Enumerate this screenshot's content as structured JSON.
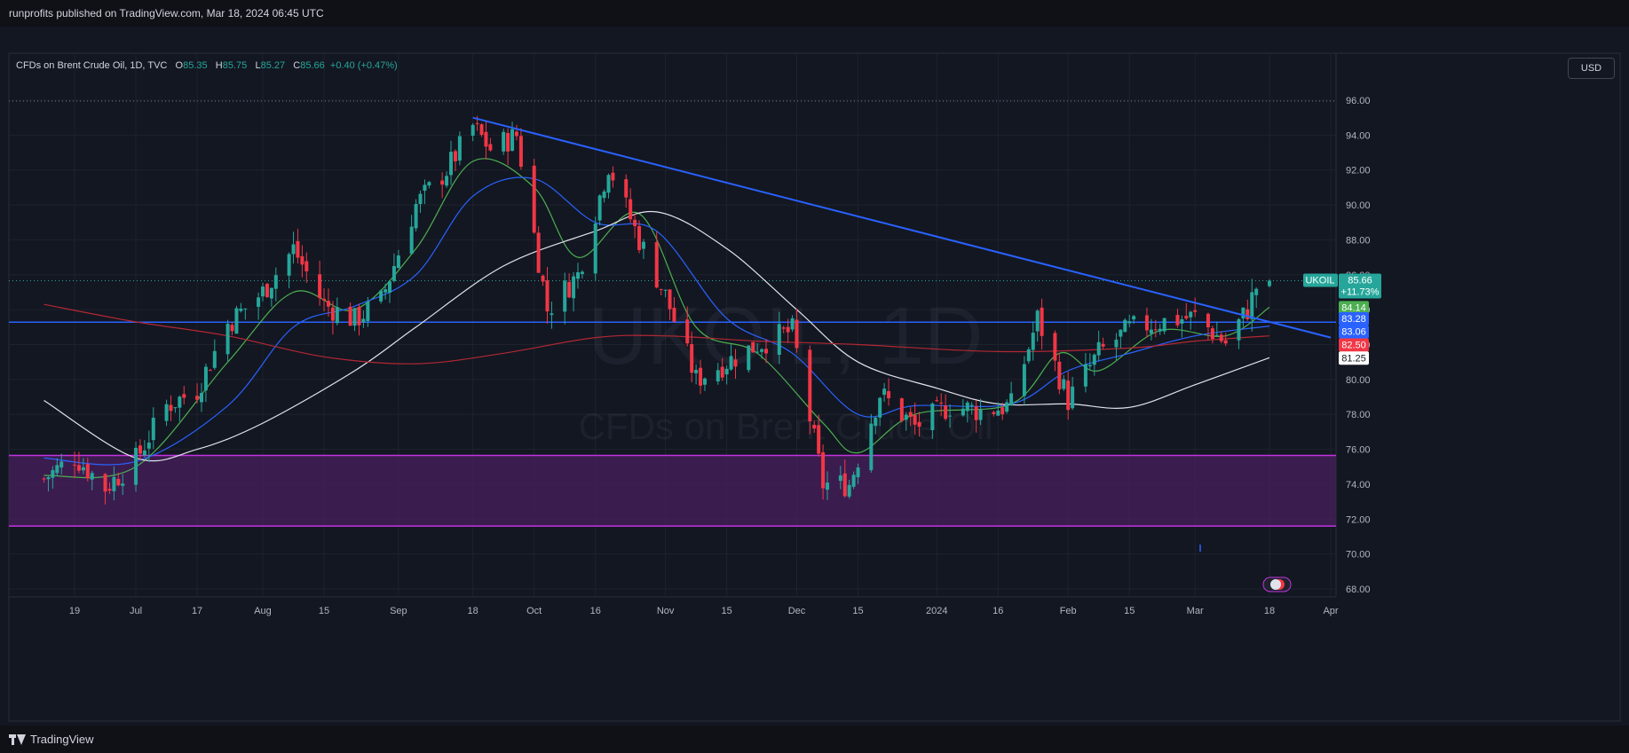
{
  "header": {
    "publisher_line": "runprofits published on TradingView.com, Mar 18, 2024 06:45 UTC"
  },
  "footer": {
    "brand": "TradingView"
  },
  "toolbar": {
    "currency_button": "USD"
  },
  "legend": {
    "instrument": "CFDs on Brent Crude Oil, 1D, TVC",
    "o_key": "O",
    "o_val": "85.35",
    "h_key": "H",
    "h_val": "85.75",
    "l_key": "L",
    "l_val": "85.27",
    "c_key": "C",
    "c_val": "85.66",
    "change": "+0.40 (+0.47%)"
  },
  "watermark": {
    "symbol": "UKOIL, 1D",
    "description": "CFDs on Brent Crude Oil"
  },
  "colors": {
    "background": "#131722",
    "up": "#26a69a",
    "down": "#f23645",
    "trendline": "#2962ff",
    "support_line": "#2962ff",
    "zone_fill": "#4a1f5e",
    "zone_border": "#c433e0",
    "ma_green": "#4caf50",
    "ma_blue": "#2962ff",
    "ma_white": "#e0e3eb",
    "ma_red": "#b22833"
  },
  "chart_data": {
    "type": "candlestick",
    "symbol": "UKOIL",
    "timeframe": "1D",
    "currency": "USD",
    "ylim": [
      67.5,
      97.2
    ],
    "y_ticks": [
      "96.00",
      "94.00",
      "92.00",
      "90.00",
      "88.00",
      "86.00",
      "84.00",
      "82.00",
      "80.00",
      "78.00",
      "76.00",
      "74.00",
      "72.00",
      "70.00",
      "68.00"
    ],
    "x_ticks": [
      {
        "label": "19",
        "date": "2023-06-19"
      },
      {
        "label": "Jul",
        "date": "2023-07-03"
      },
      {
        "label": "17",
        "date": "2023-07-17"
      },
      {
        "label": "Aug",
        "date": "2023-08-01"
      },
      {
        "label": "15",
        "date": "2023-08-15"
      },
      {
        "label": "Sep",
        "date": "2023-09-01"
      },
      {
        "label": "18",
        "date": "2023-09-18"
      },
      {
        "label": "Oct",
        "date": "2023-10-02"
      },
      {
        "label": "16",
        "date": "2023-10-16"
      },
      {
        "label": "Nov",
        "date": "2023-11-01"
      },
      {
        "label": "15",
        "date": "2023-11-15"
      },
      {
        "label": "Dec",
        "date": "2023-12-01"
      },
      {
        "label": "15",
        "date": "2023-12-15"
      },
      {
        "label": "2024",
        "date": "2024-01-02"
      },
      {
        "label": "16",
        "date": "2024-01-16"
      },
      {
        "label": "Feb",
        "date": "2024-02-01"
      },
      {
        "label": "15",
        "date": "2024-02-15"
      },
      {
        "label": "Mar",
        "date": "2024-03-01"
      },
      {
        "label": "18",
        "date": "2024-03-18"
      },
      {
        "label": "Apr",
        "date": "2024-04-01"
      }
    ],
    "close_anchors": [
      {
        "date": "2023-06-12",
        "close": 74.3
      },
      {
        "date": "2023-06-19",
        "close": 75.6
      },
      {
        "date": "2023-06-26",
        "close": 73.8
      },
      {
        "date": "2023-07-03",
        "close": 75.4
      },
      {
        "date": "2023-07-10",
        "close": 78.5
      },
      {
        "date": "2023-07-17",
        "close": 79.4
      },
      {
        "date": "2023-07-24",
        "close": 83.2
      },
      {
        "date": "2023-08-01",
        "close": 85.0
      },
      {
        "date": "2023-08-08",
        "close": 87.5
      },
      {
        "date": "2023-08-15",
        "close": 84.3
      },
      {
        "date": "2023-08-22",
        "close": 83.4
      },
      {
        "date": "2023-08-28",
        "close": 84.5
      },
      {
        "date": "2023-09-05",
        "close": 90.0
      },
      {
        "date": "2023-09-12",
        "close": 92.0
      },
      {
        "date": "2023-09-18",
        "close": 94.5
      },
      {
        "date": "2023-09-22",
        "close": 93.2
      },
      {
        "date": "2023-09-28",
        "close": 94.0
      },
      {
        "date": "2023-10-05",
        "close": 84.0
      },
      {
        "date": "2023-10-12",
        "close": 86.0
      },
      {
        "date": "2023-10-19",
        "close": 92.3
      },
      {
        "date": "2023-10-26",
        "close": 88.0
      },
      {
        "date": "2023-11-01",
        "close": 84.8
      },
      {
        "date": "2023-11-08",
        "close": 80.0
      },
      {
        "date": "2023-11-15",
        "close": 81.0
      },
      {
        "date": "2023-11-22",
        "close": 82.0
      },
      {
        "date": "2023-11-30",
        "close": 82.8
      },
      {
        "date": "2023-12-07",
        "close": 74.0
      },
      {
        "date": "2023-12-13",
        "close": 74.0
      },
      {
        "date": "2023-12-20",
        "close": 79.2
      },
      {
        "date": "2023-12-28",
        "close": 77.3
      },
      {
        "date": "2024-01-05",
        "close": 78.5
      },
      {
        "date": "2024-01-12",
        "close": 78.2
      },
      {
        "date": "2024-01-19",
        "close": 78.5
      },
      {
        "date": "2024-01-25",
        "close": 83.5
      },
      {
        "date": "2024-02-01",
        "close": 78.8
      },
      {
        "date": "2024-02-08",
        "close": 81.5
      },
      {
        "date": "2024-02-15",
        "close": 82.9
      },
      {
        "date": "2024-02-22",
        "close": 83.3
      },
      {
        "date": "2024-03-01",
        "close": 83.6
      },
      {
        "date": "2024-03-08",
        "close": 82.1
      },
      {
        "date": "2024-03-13",
        "close": 84.0
      },
      {
        "date": "2024-03-15",
        "close": 85.3
      },
      {
        "date": "2024-03-18",
        "close": 85.66
      }
    ],
    "last_candle": {
      "date": "2024-03-18",
      "open": 85.35,
      "high": 85.75,
      "low": 85.27,
      "close": 85.66
    },
    "moving_averages": [
      {
        "color": "green",
        "points": [
          [
            "2023-06-12",
            74.5
          ],
          [
            "2023-07-03",
            75.0
          ],
          [
            "2023-07-24",
            81.0
          ],
          [
            "2023-08-08",
            85.0
          ],
          [
            "2023-08-22",
            84.0
          ],
          [
            "2023-09-05",
            87.5
          ],
          [
            "2023-09-18",
            92.5
          ],
          [
            "2023-10-02",
            91.0
          ],
          [
            "2023-10-12",
            87.0
          ],
          [
            "2023-10-26",
            89.5
          ],
          [
            "2023-11-08",
            83.0
          ],
          [
            "2023-11-22",
            81.5
          ],
          [
            "2023-12-07",
            77.5
          ],
          [
            "2023-12-15",
            75.8
          ],
          [
            "2023-12-28",
            78.0
          ],
          [
            "2024-01-19",
            78.6
          ],
          [
            "2024-01-30",
            81.5
          ],
          [
            "2024-02-08",
            80.5
          ],
          [
            "2024-02-22",
            82.8
          ],
          [
            "2024-03-08",
            82.5
          ],
          [
            "2024-03-18",
            84.14
          ]
        ],
        "last_value": 84.14
      },
      {
        "color": "blue",
        "points": [
          [
            "2023-06-12",
            75.5
          ],
          [
            "2023-07-03",
            75.3
          ],
          [
            "2023-07-24",
            78.5
          ],
          [
            "2023-08-08",
            83.0
          ],
          [
            "2023-08-22",
            84.2
          ],
          [
            "2023-09-05",
            86.0
          ],
          [
            "2023-09-18",
            90.5
          ],
          [
            "2023-10-02",
            91.5
          ],
          [
            "2023-10-16",
            89.0
          ],
          [
            "2023-10-30",
            88.5
          ],
          [
            "2023-11-15",
            83.5
          ],
          [
            "2023-11-30",
            81.5
          ],
          [
            "2023-12-15",
            78.0
          ],
          [
            "2023-12-28",
            78.5
          ],
          [
            "2024-01-19",
            78.6
          ],
          [
            "2024-02-01",
            80.5
          ],
          [
            "2024-02-15",
            81.5
          ],
          [
            "2024-03-01",
            82.5
          ],
          [
            "2024-03-18",
            83.06
          ]
        ],
        "last_value": 83.06
      },
      {
        "color": "white",
        "points": [
          [
            "2023-06-12",
            78.8
          ],
          [
            "2023-07-03",
            75.5
          ],
          [
            "2023-07-17",
            76.0
          ],
          [
            "2023-08-01",
            77.5
          ],
          [
            "2023-08-22",
            80.5
          ],
          [
            "2023-09-05",
            83.0
          ],
          [
            "2023-09-25",
            86.5
          ],
          [
            "2023-10-16",
            88.5
          ],
          [
            "2023-10-30",
            89.6
          ],
          [
            "2023-11-15",
            87.5
          ],
          [
            "2023-12-01",
            84.0
          ],
          [
            "2023-12-15",
            81.0
          ],
          [
            "2024-01-02",
            79.5
          ],
          [
            "2024-01-16",
            78.6
          ],
          [
            "2024-02-01",
            78.6
          ],
          [
            "2024-02-15",
            78.4
          ],
          [
            "2024-03-01",
            79.7
          ],
          [
            "2024-03-18",
            81.25
          ]
        ],
        "last_value": 81.25
      },
      {
        "color": "red",
        "points": [
          [
            "2023-06-12",
            84.3
          ],
          [
            "2023-07-03",
            83.3
          ],
          [
            "2023-07-24",
            82.5
          ],
          [
            "2023-08-15",
            81.3
          ],
          [
            "2023-09-05",
            80.9
          ],
          [
            "2023-09-25",
            81.5
          ],
          [
            "2023-10-16",
            82.4
          ],
          [
            "2023-11-01",
            82.5
          ],
          [
            "2023-11-22",
            82.2
          ],
          [
            "2023-12-15",
            82.0
          ],
          [
            "2024-01-16",
            81.6
          ],
          [
            "2024-02-15",
            81.8
          ],
          [
            "2024-03-01",
            82.2
          ],
          [
            "2024-03-18",
            82.5
          ]
        ],
        "last_value": 82.5
      }
    ],
    "trendline": {
      "start": [
        "2023-09-18",
        95.0
      ],
      "end": [
        "2024-04-01",
        82.4
      ]
    },
    "support_line": {
      "value": 83.28
    },
    "demand_zone": {
      "top": 75.65,
      "bottom": 71.6
    },
    "price_labels": {
      "symbol": "UKOIL",
      "last_price": "85.66",
      "change_pct": "+11.73%",
      "ma_green": "84.14",
      "support": "83.28",
      "ma_blue": "83.06",
      "ma_red": "82.50",
      "ma_white": "81.25"
    }
  }
}
